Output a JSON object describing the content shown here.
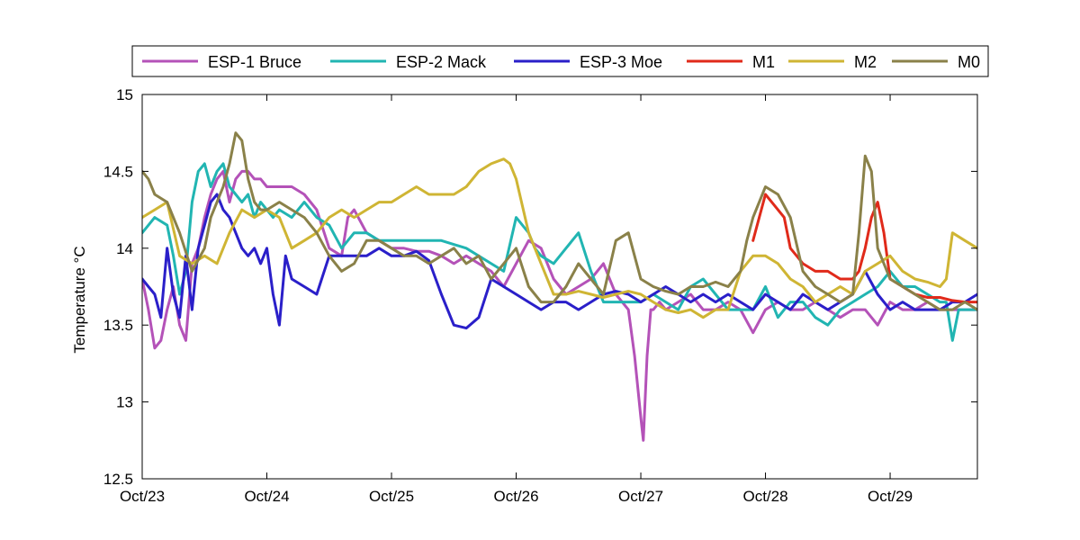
{
  "chart_data": {
    "type": "line",
    "title": "",
    "xlabel": "",
    "ylabel": "Temperature °C",
    "xlim": [
      0,
      6.7
    ],
    "ylim": [
      12.5,
      15
    ],
    "grid": false,
    "legend_position": "top",
    "x_ticks": [
      0,
      1,
      2,
      3,
      4,
      5,
      6
    ],
    "x_tick_labels": [
      "Oct/23",
      "Oct/24",
      "Oct/25",
      "Oct/26",
      "Oct/27",
      "Oct/28",
      "Oct/29"
    ],
    "y_ticks": [
      12.5,
      13,
      13.5,
      14,
      14.5,
      15
    ],
    "y_tick_labels": [
      "12.5",
      "13",
      "13.5",
      "14",
      "14.5",
      "15"
    ],
    "series": [
      {
        "name": "ESP-1 Bruce",
        "color": "#b452b8",
        "x": [
          0.0,
          0.05,
          0.1,
          0.15,
          0.2,
          0.25,
          0.3,
          0.35,
          0.4,
          0.45,
          0.5,
          0.55,
          0.6,
          0.65,
          0.7,
          0.75,
          0.8,
          0.85,
          0.9,
          0.95,
          1.0,
          1.1,
          1.2,
          1.3,
          1.4,
          1.5,
          1.6,
          1.65,
          1.7,
          1.8,
          1.9,
          2.0,
          2.1,
          2.2,
          2.3,
          2.4,
          2.5,
          2.6,
          2.7,
          2.8,
          2.9,
          3.0,
          3.1,
          3.2,
          3.3,
          3.4,
          3.5,
          3.6,
          3.7,
          3.8,
          3.9,
          3.95,
          4.0,
          4.02,
          4.05,
          4.08,
          4.1,
          4.15,
          4.2,
          4.3,
          4.4,
          4.5,
          4.6,
          4.7,
          4.8,
          4.9,
          5.0,
          5.1,
          5.2,
          5.3,
          5.4,
          5.5,
          5.6,
          5.7,
          5.8,
          5.9,
          6.0,
          6.1,
          6.2,
          6.3,
          6.4,
          6.5,
          6.6,
          6.7
        ],
        "values": [
          13.8,
          13.6,
          13.35,
          13.4,
          13.6,
          13.75,
          13.5,
          13.4,
          13.9,
          14.0,
          14.2,
          14.35,
          14.45,
          14.5,
          14.3,
          14.45,
          14.5,
          14.5,
          14.45,
          14.45,
          14.4,
          14.4,
          14.4,
          14.35,
          14.25,
          14.0,
          13.95,
          14.2,
          14.25,
          14.1,
          14.05,
          14.0,
          14.0,
          13.98,
          13.98,
          13.95,
          13.9,
          13.95,
          13.9,
          13.85,
          13.75,
          13.9,
          14.05,
          14.0,
          13.8,
          13.7,
          13.75,
          13.8,
          13.9,
          13.7,
          13.6,
          13.3,
          12.9,
          12.75,
          13.3,
          13.6,
          13.6,
          13.65,
          13.6,
          13.65,
          13.7,
          13.6,
          13.6,
          13.65,
          13.6,
          13.45,
          13.6,
          13.65,
          13.6,
          13.6,
          13.65,
          13.6,
          13.55,
          13.6,
          13.6,
          13.5,
          13.65,
          13.6,
          13.6,
          13.65,
          13.6,
          13.6,
          13.6,
          13.6
        ]
      },
      {
        "name": "ESP-2 Mack",
        "color": "#21b5b2",
        "x": [
          0.0,
          0.1,
          0.2,
          0.25,
          0.3,
          0.35,
          0.4,
          0.45,
          0.5,
          0.55,
          0.6,
          0.65,
          0.7,
          0.75,
          0.8,
          0.85,
          0.9,
          0.95,
          1.0,
          1.05,
          1.1,
          1.2,
          1.3,
          1.4,
          1.5,
          1.6,
          1.7,
          1.8,
          1.9,
          2.0,
          2.2,
          2.4,
          2.6,
          2.8,
          2.9,
          3.0,
          3.1,
          3.15,
          3.2,
          3.3,
          3.4,
          3.5,
          3.6,
          3.7,
          3.8,
          3.9,
          4.0,
          4.1,
          4.2,
          4.3,
          4.4,
          4.5,
          4.6,
          4.7,
          4.8,
          4.9,
          5.0,
          5.1,
          5.2,
          5.3,
          5.4,
          5.5,
          5.6,
          5.7,
          5.8,
          5.9,
          6.0,
          6.1,
          6.2,
          6.3,
          6.4,
          6.45,
          6.5,
          6.55,
          6.6,
          6.7
        ],
        "values": [
          14.1,
          14.2,
          14.15,
          13.95,
          13.7,
          13.85,
          14.3,
          14.5,
          14.55,
          14.4,
          14.5,
          14.55,
          14.4,
          14.35,
          14.3,
          14.35,
          14.2,
          14.3,
          14.25,
          14.2,
          14.25,
          14.2,
          14.3,
          14.2,
          14.15,
          14.0,
          14.1,
          14.1,
          14.05,
          14.05,
          14.05,
          14.05,
          14.0,
          13.9,
          13.85,
          14.2,
          14.1,
          14.0,
          13.95,
          13.9,
          14.0,
          14.1,
          13.85,
          13.65,
          13.65,
          13.65,
          13.65,
          13.7,
          13.65,
          13.6,
          13.75,
          13.8,
          13.7,
          13.6,
          13.6,
          13.6,
          13.75,
          13.55,
          13.65,
          13.65,
          13.55,
          13.5,
          13.6,
          13.65,
          13.7,
          13.75,
          13.85,
          13.75,
          13.75,
          13.7,
          13.65,
          13.65,
          13.4,
          13.6,
          13.6,
          13.6
        ]
      },
      {
        "name": "ESP-3 Moe",
        "color": "#2a1fc9",
        "x": [
          0.0,
          0.05,
          0.1,
          0.15,
          0.2,
          0.25,
          0.3,
          0.35,
          0.4,
          0.45,
          0.5,
          0.55,
          0.6,
          0.65,
          0.7,
          0.75,
          0.8,
          0.85,
          0.9,
          0.95,
          1.0,
          1.05,
          1.1,
          1.15,
          1.2,
          1.3,
          1.4,
          1.5,
          1.6,
          1.7,
          1.8,
          1.9,
          2.0,
          2.1,
          2.2,
          2.3,
          2.4,
          2.5,
          2.6,
          2.7,
          2.8,
          2.9,
          3.0,
          3.1,
          3.2,
          3.3,
          3.4,
          3.5,
          3.6,
          3.7,
          3.8,
          3.9,
          4.0,
          4.1,
          4.2,
          4.3,
          4.4,
          4.5,
          4.6,
          4.7,
          4.8,
          4.9,
          5.0,
          5.1,
          5.2,
          5.3,
          5.4,
          5.5,
          5.6,
          5.7,
          5.8,
          5.9,
          6.0,
          6.1,
          6.2,
          6.3,
          6.4,
          6.5,
          6.6,
          6.7
        ],
        "values": [
          13.8,
          13.75,
          13.7,
          13.55,
          14.0,
          13.7,
          13.55,
          13.95,
          13.6,
          14.0,
          14.15,
          14.3,
          14.35,
          14.25,
          14.2,
          14.1,
          14.0,
          13.95,
          14.0,
          13.9,
          14.0,
          13.7,
          13.5,
          13.95,
          13.8,
          13.75,
          13.7,
          13.95,
          13.95,
          13.95,
          13.95,
          14.0,
          13.95,
          13.95,
          13.98,
          13.92,
          13.7,
          13.5,
          13.48,
          13.55,
          13.8,
          13.75,
          13.7,
          13.65,
          13.6,
          13.65,
          13.65,
          13.6,
          13.65,
          13.7,
          13.72,
          13.7,
          13.65,
          13.7,
          13.75,
          13.7,
          13.65,
          13.7,
          13.65,
          13.7,
          13.65,
          13.6,
          13.7,
          13.65,
          13.6,
          13.7,
          13.65,
          13.6,
          13.65,
          13.7,
          13.85,
          13.7,
          13.6,
          13.65,
          13.6,
          13.6,
          13.6,
          13.65,
          13.65,
          13.7
        ]
      },
      {
        "name": "M1",
        "color": "#e02a1a",
        "x": [
          4.9,
          4.95,
          5.0,
          5.05,
          5.1,
          5.15,
          5.2,
          5.25,
          5.3,
          5.4,
          5.5,
          5.6,
          5.7,
          5.75,
          5.8,
          5.85,
          5.9,
          5.95,
          6.0,
          6.1,
          6.2,
          6.3,
          6.4,
          6.5,
          6.6,
          6.7
        ],
        "values": [
          14.05,
          14.2,
          14.35,
          14.3,
          14.25,
          14.2,
          14.0,
          13.95,
          13.9,
          13.85,
          13.85,
          13.8,
          13.8,
          13.85,
          14.0,
          14.2,
          14.3,
          14.1,
          13.8,
          13.75,
          13.7,
          13.68,
          13.68,
          13.66,
          13.65,
          13.65
        ]
      },
      {
        "name": "M2",
        "color": "#cfb534",
        "x": [
          0.0,
          0.1,
          0.2,
          0.3,
          0.4,
          0.5,
          0.6,
          0.7,
          0.8,
          0.9,
          1.0,
          1.1,
          1.2,
          1.3,
          1.4,
          1.5,
          1.6,
          1.7,
          1.8,
          1.9,
          2.0,
          2.1,
          2.2,
          2.3,
          2.4,
          2.5,
          2.6,
          2.7,
          2.8,
          2.9,
          2.95,
          3.0,
          3.1,
          3.2,
          3.3,
          3.4,
          3.5,
          3.6,
          3.7,
          3.8,
          3.9,
          4.0,
          4.1,
          4.2,
          4.3,
          4.4,
          4.5,
          4.6,
          4.7,
          4.8,
          4.9,
          5.0,
          5.1,
          5.2,
          5.3,
          5.4,
          5.5,
          5.6,
          5.7,
          5.8,
          5.9,
          6.0,
          6.1,
          6.2,
          6.3,
          6.4,
          6.45,
          6.5,
          6.6,
          6.7
        ],
        "values": [
          14.2,
          14.25,
          14.3,
          13.95,
          13.9,
          13.95,
          13.9,
          14.1,
          14.25,
          14.2,
          14.25,
          14.2,
          14.0,
          14.05,
          14.1,
          14.2,
          14.25,
          14.2,
          14.25,
          14.3,
          14.3,
          14.35,
          14.4,
          14.35,
          14.35,
          14.35,
          14.4,
          14.5,
          14.55,
          14.58,
          14.55,
          14.45,
          14.1,
          13.9,
          13.7,
          13.7,
          13.72,
          13.7,
          13.68,
          13.7,
          13.72,
          13.7,
          13.65,
          13.6,
          13.58,
          13.6,
          13.55,
          13.6,
          13.6,
          13.85,
          13.95,
          13.95,
          13.9,
          13.8,
          13.75,
          13.65,
          13.7,
          13.75,
          13.7,
          13.85,
          13.9,
          13.95,
          13.85,
          13.8,
          13.78,
          13.75,
          13.8,
          14.1,
          14.05,
          14.0
        ]
      },
      {
        "name": "M0",
        "color": "#8a8149",
        "x": [
          0.0,
          0.05,
          0.1,
          0.2,
          0.3,
          0.4,
          0.5,
          0.55,
          0.6,
          0.65,
          0.7,
          0.75,
          0.8,
          0.85,
          0.9,
          0.95,
          1.0,
          1.1,
          1.2,
          1.3,
          1.4,
          1.5,
          1.6,
          1.7,
          1.8,
          1.9,
          2.0,
          2.1,
          2.2,
          2.3,
          2.4,
          2.5,
          2.6,
          2.7,
          2.8,
          2.9,
          3.0,
          3.1,
          3.2,
          3.3,
          3.4,
          3.5,
          3.6,
          3.7,
          3.8,
          3.9,
          4.0,
          4.1,
          4.2,
          4.3,
          4.4,
          4.5,
          4.6,
          4.7,
          4.8,
          4.85,
          4.9,
          5.0,
          5.1,
          5.2,
          5.3,
          5.4,
          5.5,
          5.6,
          5.7,
          5.75,
          5.8,
          5.85,
          5.9,
          6.0,
          6.1,
          6.2,
          6.3,
          6.4,
          6.5,
          6.6,
          6.7
        ],
        "values": [
          14.5,
          14.45,
          14.35,
          14.3,
          14.1,
          13.85,
          14.0,
          14.2,
          14.3,
          14.4,
          14.55,
          14.75,
          14.7,
          14.45,
          14.3,
          14.25,
          14.25,
          14.3,
          14.25,
          14.2,
          14.1,
          13.95,
          13.85,
          13.9,
          14.05,
          14.05,
          14.0,
          13.95,
          13.95,
          13.9,
          13.95,
          14.0,
          13.9,
          13.95,
          13.8,
          13.9,
          14.0,
          13.75,
          13.65,
          13.65,
          13.75,
          13.9,
          13.8,
          13.7,
          14.05,
          14.1,
          13.8,
          13.75,
          13.72,
          13.7,
          13.75,
          13.75,
          13.78,
          13.75,
          13.85,
          14.05,
          14.2,
          14.4,
          14.35,
          14.2,
          13.85,
          13.75,
          13.7,
          13.65,
          13.7,
          14.1,
          14.6,
          14.5,
          14.0,
          13.8,
          13.75,
          13.7,
          13.65,
          13.6,
          13.6,
          13.65,
          13.6
        ]
      }
    ]
  }
}
